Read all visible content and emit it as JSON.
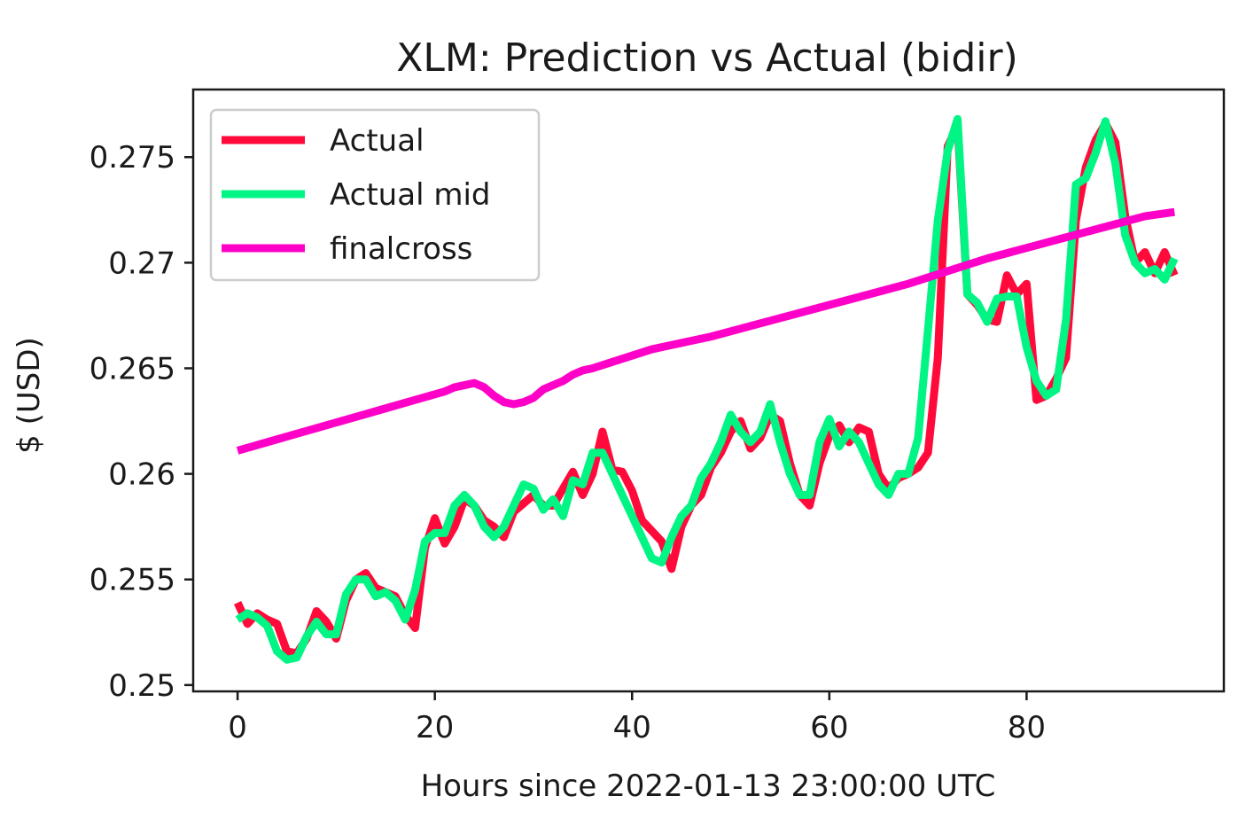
{
  "chart_data": {
    "type": "line",
    "title": "XLM: Prediction vs Actual (bidir)",
    "xlabel": "Hours since 2022-01-13 23:00:00 UTC",
    "ylabel": "$ (USD)",
    "xlim": [
      -4.5,
      100
    ],
    "ylim": [
      0.2497,
      0.2782
    ],
    "xticks": [
      0,
      20,
      40,
      60,
      80
    ],
    "xtick_labels": [
      "0",
      "20",
      "40",
      "60",
      "80"
    ],
    "yticks": [
      0.25,
      0.255,
      0.26,
      0.265,
      0.27,
      0.275
    ],
    "ytick_labels": [
      "0.25",
      "0.255",
      "0.26",
      "0.265",
      "0.27",
      "0.275"
    ],
    "grid": false,
    "legend_position": "upper-left",
    "series": [
      {
        "name": "Actual",
        "color": "#ff0a3a",
        "x": [
          0,
          1,
          2,
          3,
          4,
          5,
          6,
          7,
          8,
          9,
          10,
          11,
          12,
          13,
          14,
          15,
          16,
          17,
          18,
          19,
          20,
          21,
          22,
          23,
          24,
          25,
          26,
          27,
          28,
          29,
          30,
          31,
          32,
          33,
          34,
          35,
          36,
          37,
          38,
          39,
          40,
          41,
          42,
          43,
          44,
          45,
          46,
          47,
          48,
          49,
          50,
          51,
          52,
          53,
          54,
          55,
          56,
          57,
          58,
          59,
          60,
          61,
          62,
          63,
          64,
          65,
          66,
          67,
          68,
          69,
          70,
          71,
          72,
          73,
          74,
          75,
          76,
          77,
          78,
          79,
          80,
          81,
          82,
          83,
          84,
          85,
          86,
          87,
          88,
          89,
          90,
          91,
          92,
          93,
          94,
          95
        ],
        "values": [
          0.2539,
          0.2529,
          0.2534,
          0.2531,
          0.2529,
          0.2516,
          0.2515,
          0.2522,
          0.2535,
          0.253,
          0.2522,
          0.254,
          0.255,
          0.2553,
          0.2546,
          0.2544,
          0.2542,
          0.2533,
          0.2527,
          0.2565,
          0.2579,
          0.2567,
          0.2575,
          0.2588,
          0.2585,
          0.2578,
          0.2575,
          0.257,
          0.2582,
          0.2586,
          0.259,
          0.2585,
          0.2585,
          0.2593,
          0.2601,
          0.259,
          0.26,
          0.262,
          0.2602,
          0.2601,
          0.2592,
          0.2578,
          0.2573,
          0.2568,
          0.2555,
          0.2575,
          0.2585,
          0.259,
          0.2603,
          0.261,
          0.262,
          0.2625,
          0.2612,
          0.2617,
          0.2628,
          0.2625,
          0.2605,
          0.259,
          0.2585,
          0.2605,
          0.2618,
          0.2623,
          0.2615,
          0.2622,
          0.262,
          0.26,
          0.2593,
          0.2598,
          0.26,
          0.2603,
          0.261,
          0.2655,
          0.2755,
          0.2765,
          0.2685,
          0.268,
          0.2673,
          0.2672,
          0.2694,
          0.2685,
          0.269,
          0.2635,
          0.2637,
          0.2645,
          0.2655,
          0.272,
          0.2745,
          0.2758,
          0.2766,
          0.2757,
          0.2722,
          0.27,
          0.2705,
          0.2695,
          0.2705,
          0.2694
        ]
      },
      {
        "name": "Actual mid",
        "color": "#00f584",
        "x": [
          0,
          1,
          2,
          3,
          4,
          5,
          6,
          7,
          8,
          9,
          10,
          11,
          12,
          13,
          14,
          15,
          16,
          17,
          18,
          19,
          20,
          21,
          22,
          23,
          24,
          25,
          26,
          27,
          28,
          29,
          30,
          31,
          32,
          33,
          34,
          35,
          36,
          37,
          38,
          39,
          40,
          41,
          42,
          43,
          44,
          45,
          46,
          47,
          48,
          49,
          50,
          51,
          52,
          53,
          54,
          55,
          56,
          57,
          58,
          59,
          60,
          61,
          62,
          63,
          64,
          65,
          66,
          67,
          68,
          69,
          70,
          71,
          72,
          73,
          74,
          75,
          76,
          77,
          78,
          79,
          80,
          81,
          82,
          83,
          84,
          85,
          86,
          87,
          88,
          89,
          90,
          91,
          92,
          93,
          94,
          95
        ],
        "values": [
          0.2531,
          0.2534,
          0.2532,
          0.2528,
          0.2516,
          0.2512,
          0.2513,
          0.2523,
          0.253,
          0.2524,
          0.2524,
          0.2543,
          0.255,
          0.255,
          0.2542,
          0.2544,
          0.254,
          0.2531,
          0.2545,
          0.2568,
          0.2572,
          0.2572,
          0.2585,
          0.259,
          0.2585,
          0.2575,
          0.257,
          0.2575,
          0.2585,
          0.2595,
          0.2593,
          0.2583,
          0.2588,
          0.258,
          0.2597,
          0.2595,
          0.261,
          0.261,
          0.26,
          0.259,
          0.258,
          0.257,
          0.256,
          0.2558,
          0.257,
          0.258,
          0.2585,
          0.2598,
          0.2605,
          0.2615,
          0.2628,
          0.262,
          0.2615,
          0.262,
          0.2633,
          0.2615,
          0.26,
          0.259,
          0.259,
          0.2615,
          0.2626,
          0.2613,
          0.262,
          0.2615,
          0.2605,
          0.2595,
          0.259,
          0.26,
          0.26,
          0.2617,
          0.2668,
          0.272,
          0.2753,
          0.2768,
          0.2685,
          0.2681,
          0.2672,
          0.2683,
          0.2684,
          0.2684,
          0.266,
          0.2644,
          0.2637,
          0.264,
          0.2673,
          0.2737,
          0.274,
          0.2752,
          0.2767,
          0.2747,
          0.2713,
          0.27,
          0.2695,
          0.2697,
          0.2692,
          0.2702
        ]
      },
      {
        "name": "finalcross",
        "color": "#ff00c8",
        "x": [
          0,
          3,
          6,
          9,
          12,
          15,
          18,
          21,
          22,
          23,
          24,
          25,
          26,
          27,
          28,
          29,
          30,
          31,
          32,
          33,
          34,
          35,
          36,
          38,
          40,
          42,
          44,
          46,
          48,
          52,
          56,
          60,
          64,
          68,
          72,
          76,
          80,
          84,
          88,
          92,
          95
        ],
        "values": [
          0.2611,
          0.2615,
          0.2619,
          0.2623,
          0.2627,
          0.2631,
          0.2635,
          0.2639,
          0.2641,
          0.2642,
          0.2643,
          0.2641,
          0.2637,
          0.2634,
          0.2633,
          0.2634,
          0.2636,
          0.264,
          0.2642,
          0.2644,
          0.2647,
          0.2649,
          0.265,
          0.2653,
          0.2656,
          0.2659,
          0.2661,
          0.2663,
          0.2665,
          0.267,
          0.2675,
          0.268,
          0.2685,
          0.269,
          0.2696,
          0.2702,
          0.2707,
          0.2712,
          0.2717,
          0.2722,
          0.2724
        ]
      }
    ]
  }
}
